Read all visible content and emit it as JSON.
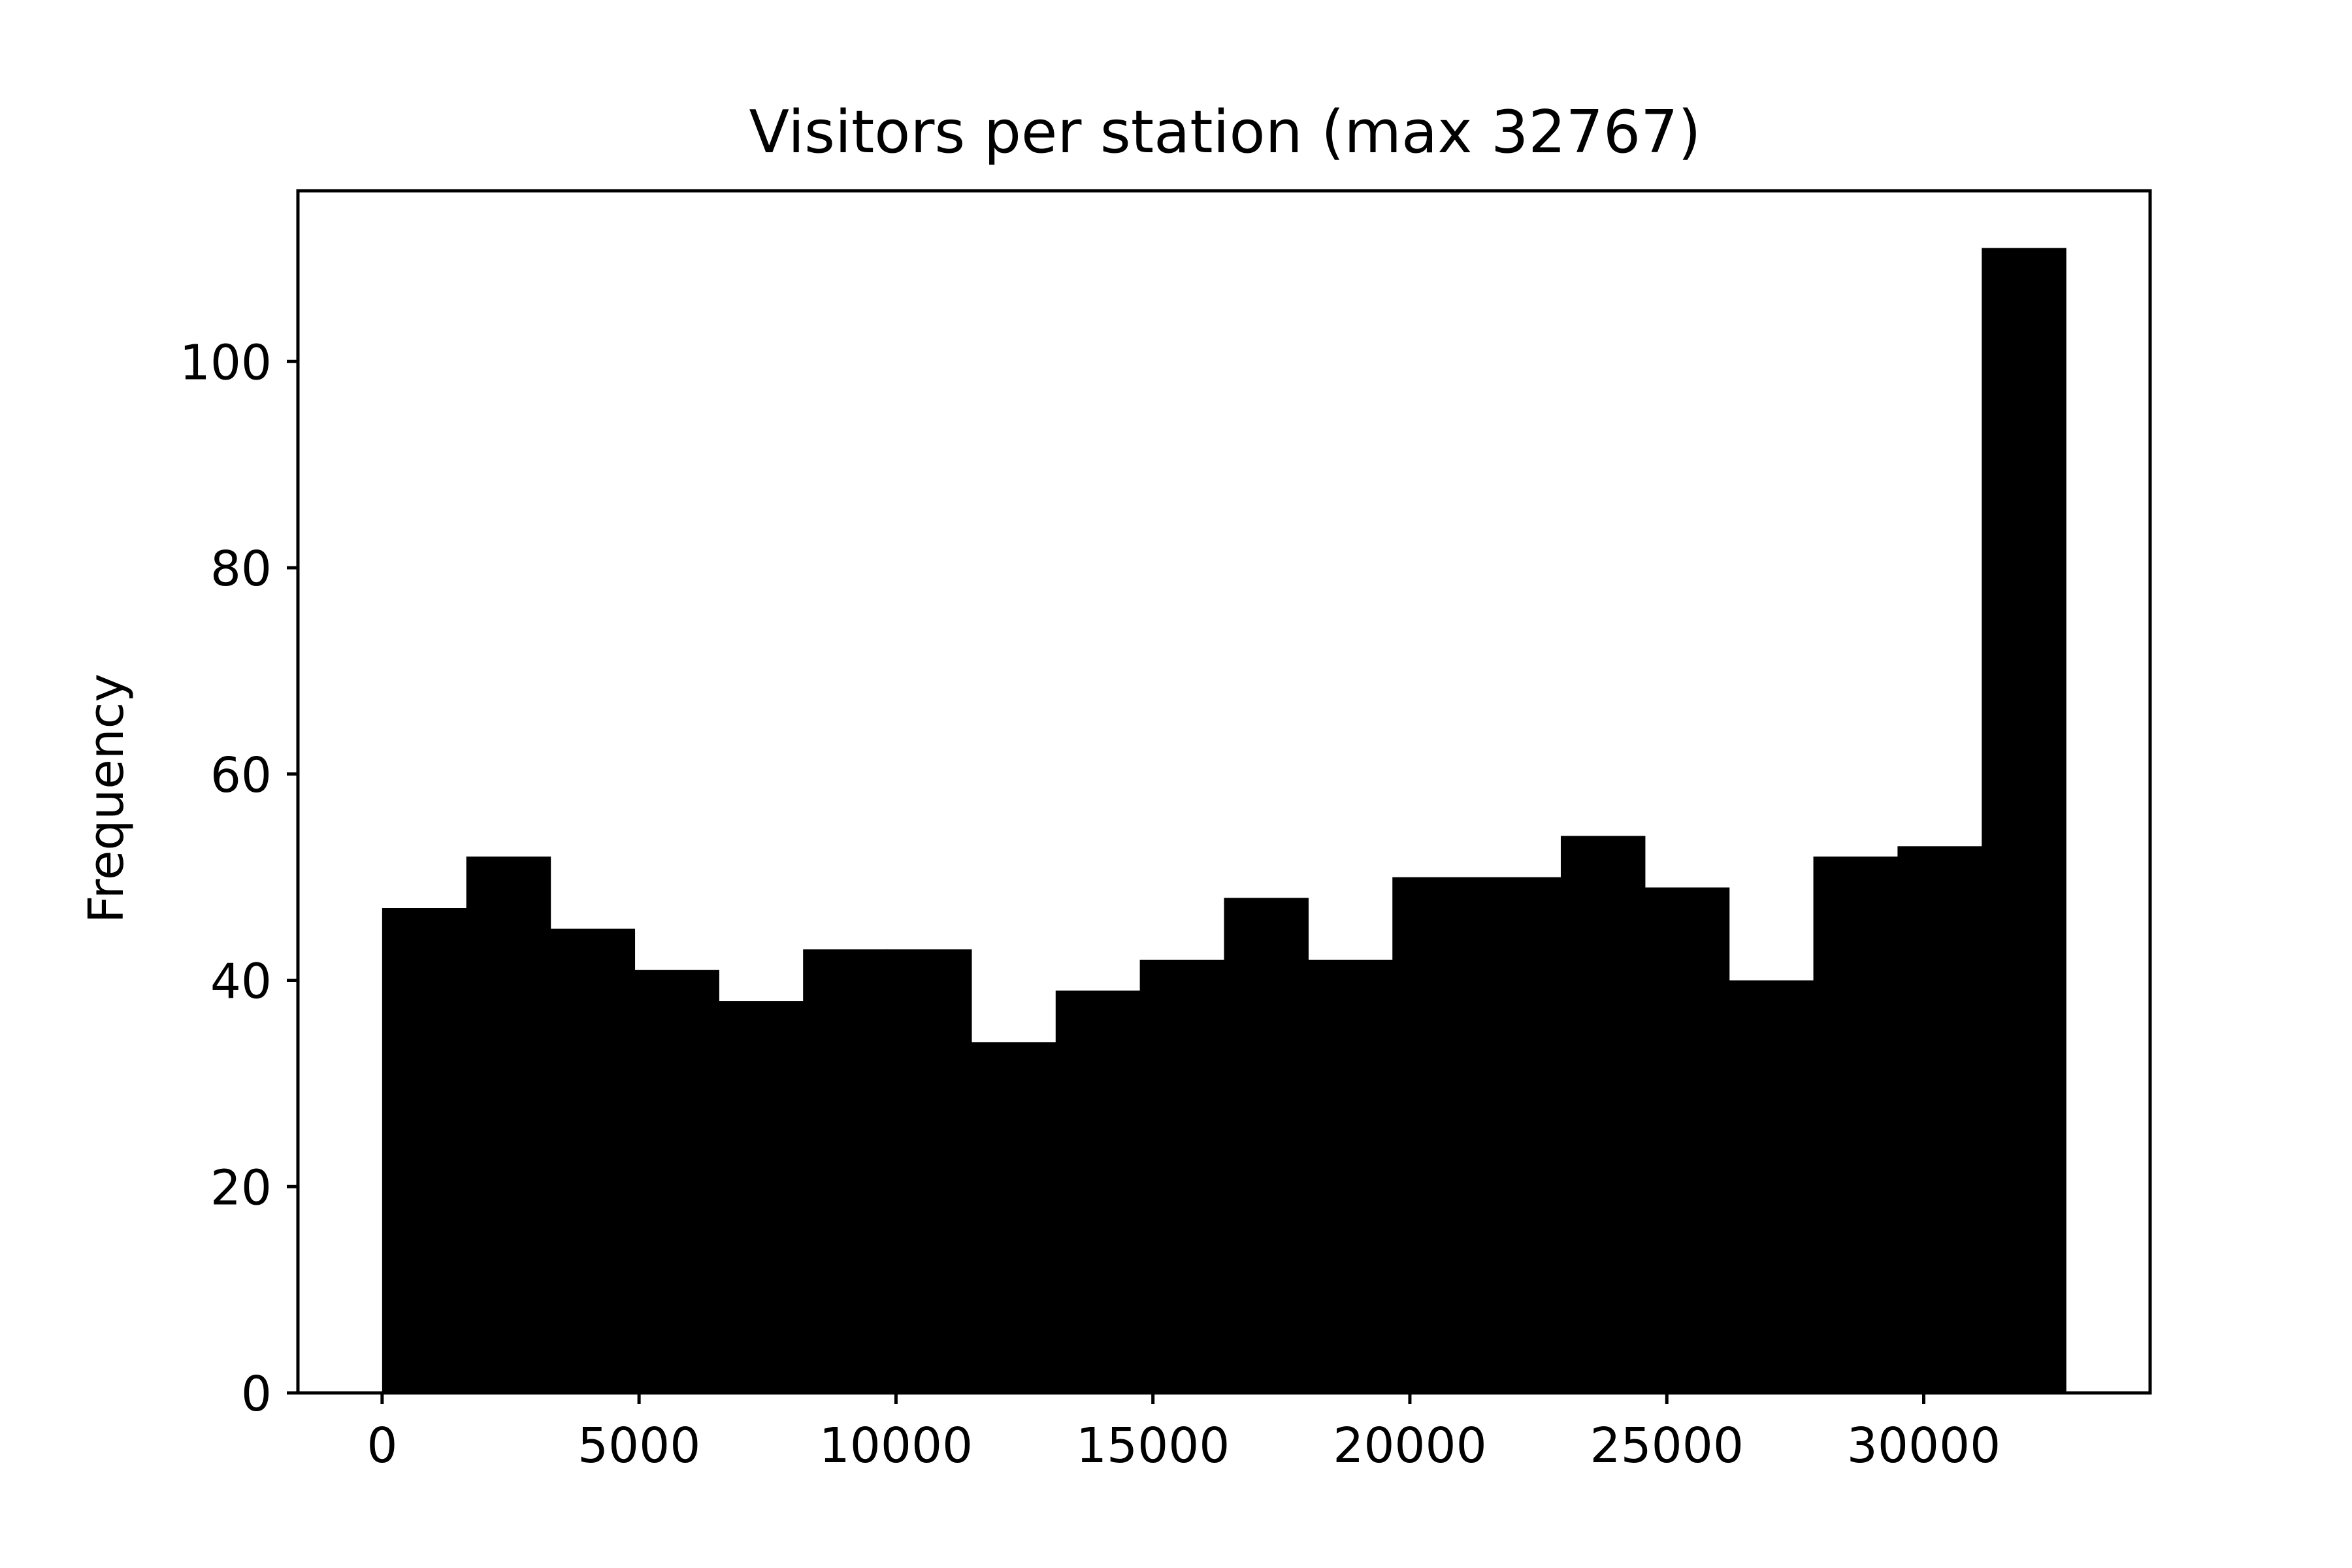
{
  "chart_data": {
    "type": "bar",
    "title": "Visitors per station (max 32767)",
    "xlabel": "",
    "ylabel": "Frequency",
    "bin_width": 1638.35,
    "bin_edges": [
      0,
      1638.35,
      3276.7,
      4915.05,
      6553.4,
      8191.75,
      9830.1,
      11468.45,
      13106.8,
      14745.15,
      16383.5,
      18021.85,
      19660.2,
      21298.55,
      22936.9,
      24575.25,
      26213.6,
      27851.95,
      29490.3,
      31128.65,
      32767
    ],
    "values": [
      47,
      52,
      45,
      41,
      38,
      43,
      43,
      34,
      39,
      42,
      48,
      42,
      50,
      50,
      54,
      49,
      40,
      52,
      53,
      111
    ],
    "xlim": [
      -1638.35,
      34405.35
    ],
    "ylim": [
      0,
      116.55
    ],
    "xticks": [
      0,
      5000,
      10000,
      15000,
      20000,
      25000,
      30000
    ],
    "xtick_labels": [
      "0",
      "5000",
      "10000",
      "15000",
      "20000",
      "25000",
      "30000"
    ],
    "yticks": [
      0,
      20,
      40,
      60,
      80,
      100
    ],
    "ytick_labels": [
      "0",
      "20",
      "40",
      "60",
      "80",
      "100"
    ],
    "bar_color": "#000000",
    "grid": false,
    "legend": "none"
  }
}
